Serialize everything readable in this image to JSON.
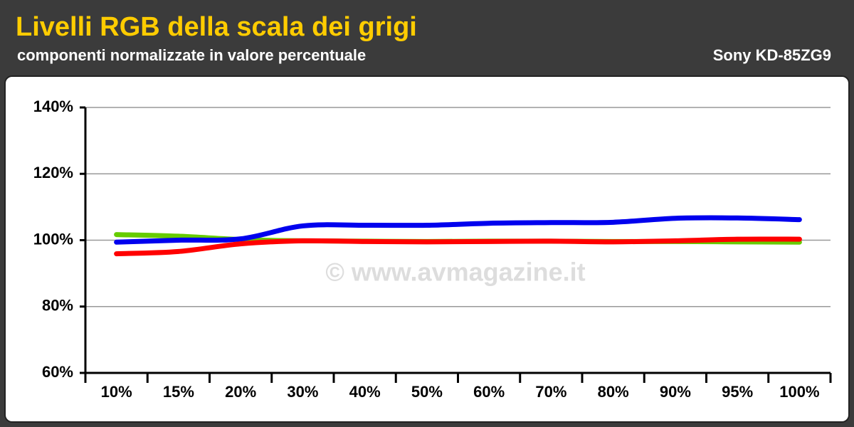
{
  "chart_data": {
    "type": "line",
    "title": "Livelli RGB della scala dei grigi",
    "subtitle": "componenti normalizzate in valore percentuale",
    "device": "Sony KD-85ZG9",
    "watermark": "© www.avmagazine.it",
    "categories": [
      "10%",
      "15%",
      "20%",
      "30%",
      "40%",
      "50%",
      "60%",
      "70%",
      "80%",
      "90%",
      "95%",
      "100%"
    ],
    "series": [
      {
        "name": "G",
        "color": "#66cc00",
        "values": [
          101.7,
          101.2,
          100.2,
          99.8,
          99.7,
          99.6,
          99.7,
          99.7,
          99.6,
          99.6,
          99.5,
          99.4
        ]
      },
      {
        "name": "B",
        "color": "#0000ee",
        "values": [
          99.4,
          100.0,
          100.4,
          104.3,
          104.5,
          104.5,
          105.1,
          105.3,
          105.4,
          106.6,
          106.7,
          106.2
        ]
      },
      {
        "name": "R",
        "color": "#ff0000",
        "values": [
          95.9,
          96.6,
          98.9,
          99.8,
          99.6,
          99.5,
          99.6,
          99.7,
          99.5,
          99.8,
          100.3,
          100.3
        ]
      }
    ],
    "ylim": [
      60,
      140
    ],
    "yticks": [
      {
        "value": 60,
        "label": "60%"
      },
      {
        "value": 80,
        "label": "80%"
      },
      {
        "value": 100,
        "label": "100%"
      },
      {
        "value": 120,
        "label": "120%"
      },
      {
        "value": 140,
        "label": "140%"
      }
    ],
    "grid": true
  }
}
